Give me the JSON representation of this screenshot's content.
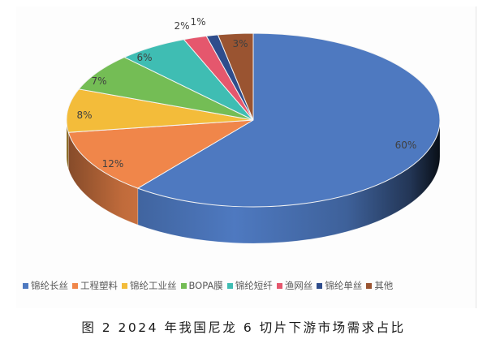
{
  "chart_data": {
    "type": "pie",
    "style": "3d",
    "title": "",
    "categories": [
      "锦纶长丝",
      "工程塑料",
      "锦纶工业丝",
      "BOPA膜",
      "锦纶短纤",
      "渔网丝",
      "锦纶单丝",
      "其他"
    ],
    "values": [
      60,
      12,
      8,
      7,
      6,
      2,
      1,
      3
    ],
    "unit": "%",
    "data_labels": [
      "60%",
      "12%",
      "8%",
      "7%",
      "6%",
      "2%",
      "1%",
      "3%"
    ],
    "colors": [
      "#4e79c0",
      "#f0864a",
      "#f3bc3a",
      "#74bd55",
      "#3fbdb3",
      "#e5576d",
      "#2f4d8c",
      "#9a5431"
    ],
    "start_angle": "12 o'clock",
    "direction": "clockwise",
    "legend_position": "bottom"
  },
  "legend": {
    "items": [
      {
        "label": "锦纶长丝",
        "color": "#4e79c0"
      },
      {
        "label": "工程塑料",
        "color": "#f0864a"
      },
      {
        "label": "锦纶工业丝",
        "color": "#f3bc3a"
      },
      {
        "label": "BOPA膜",
        "color": "#74bd55"
      },
      {
        "label": "锦纶短纤",
        "color": "#3fbdb3"
      },
      {
        "label": "渔网丝",
        "color": "#e5576d"
      },
      {
        "label": "锦纶单丝",
        "color": "#2f4d8c"
      },
      {
        "label": "其他",
        "color": "#9a5431"
      }
    ]
  },
  "caption": "图 2  2024 年我国尼龙 6 切片下游市场需求占比"
}
